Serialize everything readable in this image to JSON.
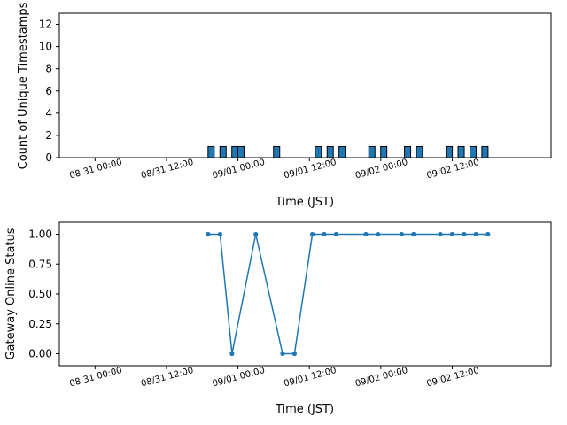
{
  "chart_data": [
    {
      "type": "bar",
      "title": "",
      "xlabel": "Time (JST)",
      "ylabel": "Count of Unique Timestamps",
      "ylim": [
        0,
        13
      ],
      "yticks": [
        0,
        2,
        4,
        6,
        8,
        10,
        12
      ],
      "xticks": [
        "08/31 00:00",
        "08/31 12:00",
        "09/01 00:00",
        "09/01 12:00",
        "09/02 00:00",
        "09/02 12:00"
      ],
      "x_unit": "hours since 08/30 18:00 JST",
      "grid": false,
      "bars": [
        {
          "x": 25.5,
          "value": 1
        },
        {
          "x": 27.5,
          "value": 1
        },
        {
          "x": 29.5,
          "value": 1
        },
        {
          "x": 30.5,
          "value": 1
        },
        {
          "x": 36.5,
          "value": 1
        },
        {
          "x": 43.5,
          "value": 1
        },
        {
          "x": 45.5,
          "value": 1
        },
        {
          "x": 47.5,
          "value": 1
        },
        {
          "x": 52.5,
          "value": 1
        },
        {
          "x": 54.5,
          "value": 1
        },
        {
          "x": 58.5,
          "value": 1
        },
        {
          "x": 60.5,
          "value": 1
        },
        {
          "x": 65.5,
          "value": 1
        },
        {
          "x": 67.5,
          "value": 1
        },
        {
          "x": 69.5,
          "value": 1
        },
        {
          "x": 71.5,
          "value": 1
        }
      ],
      "color": "#1f77b4"
    },
    {
      "type": "line",
      "title": "",
      "xlabel": "Time (JST)",
      "ylabel": "Gateway Online Status",
      "ylim": [
        -0.1,
        1.1
      ],
      "yticks": [
        "0.00",
        "0.25",
        "0.50",
        "0.75",
        "1.00"
      ],
      "xticks": [
        "08/31 00:00",
        "08/31 12:00",
        "09/01 00:00",
        "09/01 12:00",
        "09/02 00:00",
        "09/02 12:00"
      ],
      "grid": false,
      "series": [
        {
          "x": [
            25.0,
            27.0,
            29.0,
            33.0,
            37.5,
            39.5,
            42.5,
            44.5,
            46.5,
            51.5,
            53.5,
            57.5,
            59.5,
            64.0,
            66.0,
            68.0,
            70.0,
            72.0
          ],
          "y": [
            1,
            1,
            0,
            1,
            0,
            0,
            1,
            1,
            1,
            1,
            1,
            1,
            1,
            1,
            1,
            1,
            1,
            1
          ]
        }
      ],
      "color": "#1f77b4"
    }
  ]
}
